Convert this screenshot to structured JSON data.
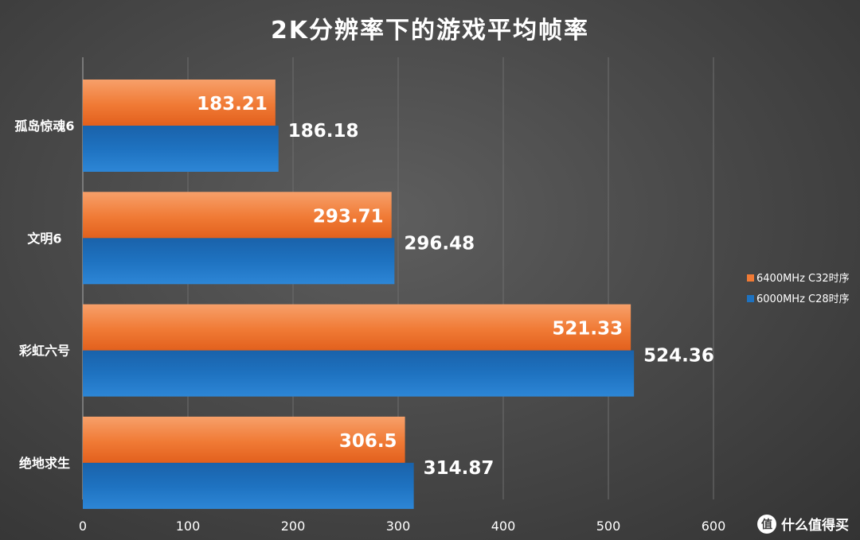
{
  "chart_data": {
    "type": "bar",
    "orientation": "horizontal",
    "title": "2K分辨率下的游戏平均帧率",
    "categories": [
      "孤岛惊魂6",
      "文明6",
      "彩虹六号",
      "绝地求生"
    ],
    "series": [
      {
        "name": "6400MHz C32时序",
        "color": "#f07a35",
        "values": [
          183.21,
          293.71,
          521.33,
          306.5
        ]
      },
      {
        "name": "6000MHz C28时序",
        "color": "#1e72c0",
        "values": [
          186.18,
          296.48,
          524.36,
          314.87
        ]
      }
    ],
    "xlim": [
      0,
      600
    ],
    "xticks": [
      0,
      100,
      200,
      300,
      400,
      500,
      600
    ],
    "grid": true,
    "legend": "right"
  },
  "watermark": {
    "icon": "值",
    "text": "什么值得买"
  }
}
